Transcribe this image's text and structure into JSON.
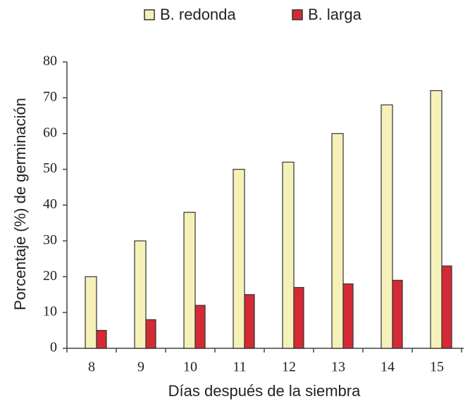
{
  "chart_data": {
    "type": "bar",
    "x_label": "Días después de la siembra",
    "y_label": "Porcentaje (%) de germinación",
    "categories": [
      "8",
      "9",
      "10",
      "11",
      "12",
      "13",
      "14",
      "15"
    ],
    "series": [
      {
        "name": "B. redonda",
        "color": "#f6f1b9",
        "values": [
          20,
          30,
          38,
          50,
          52,
          60,
          68,
          72
        ]
      },
      {
        "name": "B. larga",
        "color": "#d42a35",
        "values": [
          5,
          8,
          12,
          15,
          17,
          18,
          19,
          23
        ]
      }
    ],
    "ylim": [
      0,
      80
    ],
    "yticks": [
      0,
      10,
      20,
      30,
      40,
      50,
      60,
      70,
      80
    ],
    "legend": "top",
    "grid": false
  }
}
